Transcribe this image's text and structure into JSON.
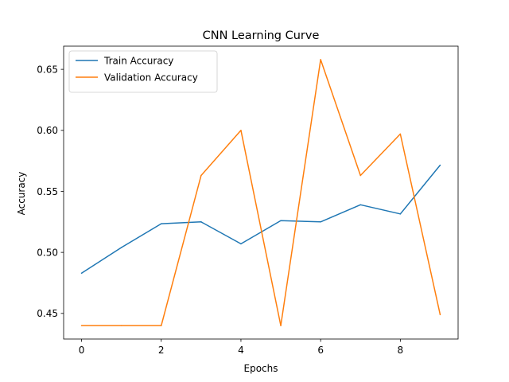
{
  "chart_data": {
    "type": "line",
    "title": "CNN Learning Curve",
    "xlabel": "Epochs",
    "ylabel": "Accuracy",
    "x": [
      0,
      1,
      2,
      3,
      4,
      5,
      6,
      7,
      8,
      9
    ],
    "xlim": [
      -0.45,
      9.45
    ],
    "ylim": [
      0.429,
      0.669
    ],
    "xticks": [
      0,
      2,
      4,
      6,
      8
    ],
    "yticks": [
      0.45,
      0.5,
      0.55,
      0.6,
      0.65
    ],
    "grid": false,
    "legend_position": "top-left",
    "series": [
      {
        "name": "Train Accuracy",
        "color": "#1f77b4",
        "values": [
          0.483,
          0.504,
          0.5235,
          0.525,
          0.507,
          0.526,
          0.525,
          0.539,
          0.5315,
          0.5715
        ]
      },
      {
        "name": "Validation Accuracy",
        "color": "#ff7f0e",
        "values": [
          0.44,
          0.44,
          0.44,
          0.563,
          0.6,
          0.44,
          0.658,
          0.563,
          0.597,
          0.449
        ]
      }
    ]
  }
}
